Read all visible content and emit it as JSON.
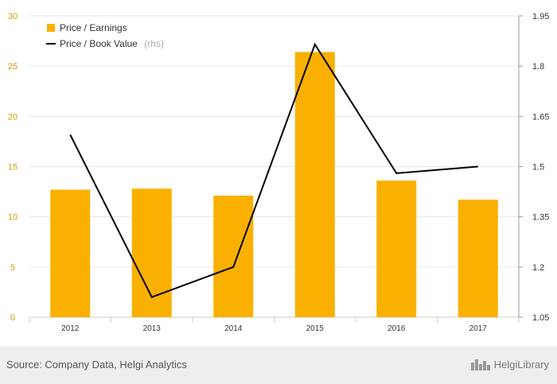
{
  "chart_data": {
    "type": "bar",
    "categories": [
      "2012",
      "2013",
      "2014",
      "2015",
      "2016",
      "2017"
    ],
    "series": [
      {
        "name": "Price / Earnings",
        "type": "bar",
        "axis": "left",
        "values": [
          12.7,
          12.8,
          12.1,
          26.4,
          13.6,
          11.7
        ],
        "color": "#f9b000"
      },
      {
        "name": "Price / Book Value",
        "name_suffix": "(rhs)",
        "type": "line",
        "axis": "right",
        "values": [
          1.595,
          1.11,
          1.2,
          1.865,
          1.48,
          1.5
        ],
        "color": "#000000"
      }
    ],
    "left_axis": {
      "ylim": [
        0,
        30
      ],
      "ticks": [
        "0",
        "5",
        "10",
        "15",
        "20",
        "25",
        "30"
      ]
    },
    "right_axis": {
      "ylim": [
        1.05,
        1.95
      ],
      "ticks": [
        "1.05",
        "1.2",
        "1.35",
        "1.5",
        "1.65",
        "1.8",
        "1.95"
      ]
    },
    "grid": "horizontal",
    "legend": "top-left"
  },
  "footer": {
    "source": "Source: Company Data, Helgi Analytics",
    "logo_text": "HelgiLibrary",
    "logo_icon": "city-skyline-icon"
  }
}
